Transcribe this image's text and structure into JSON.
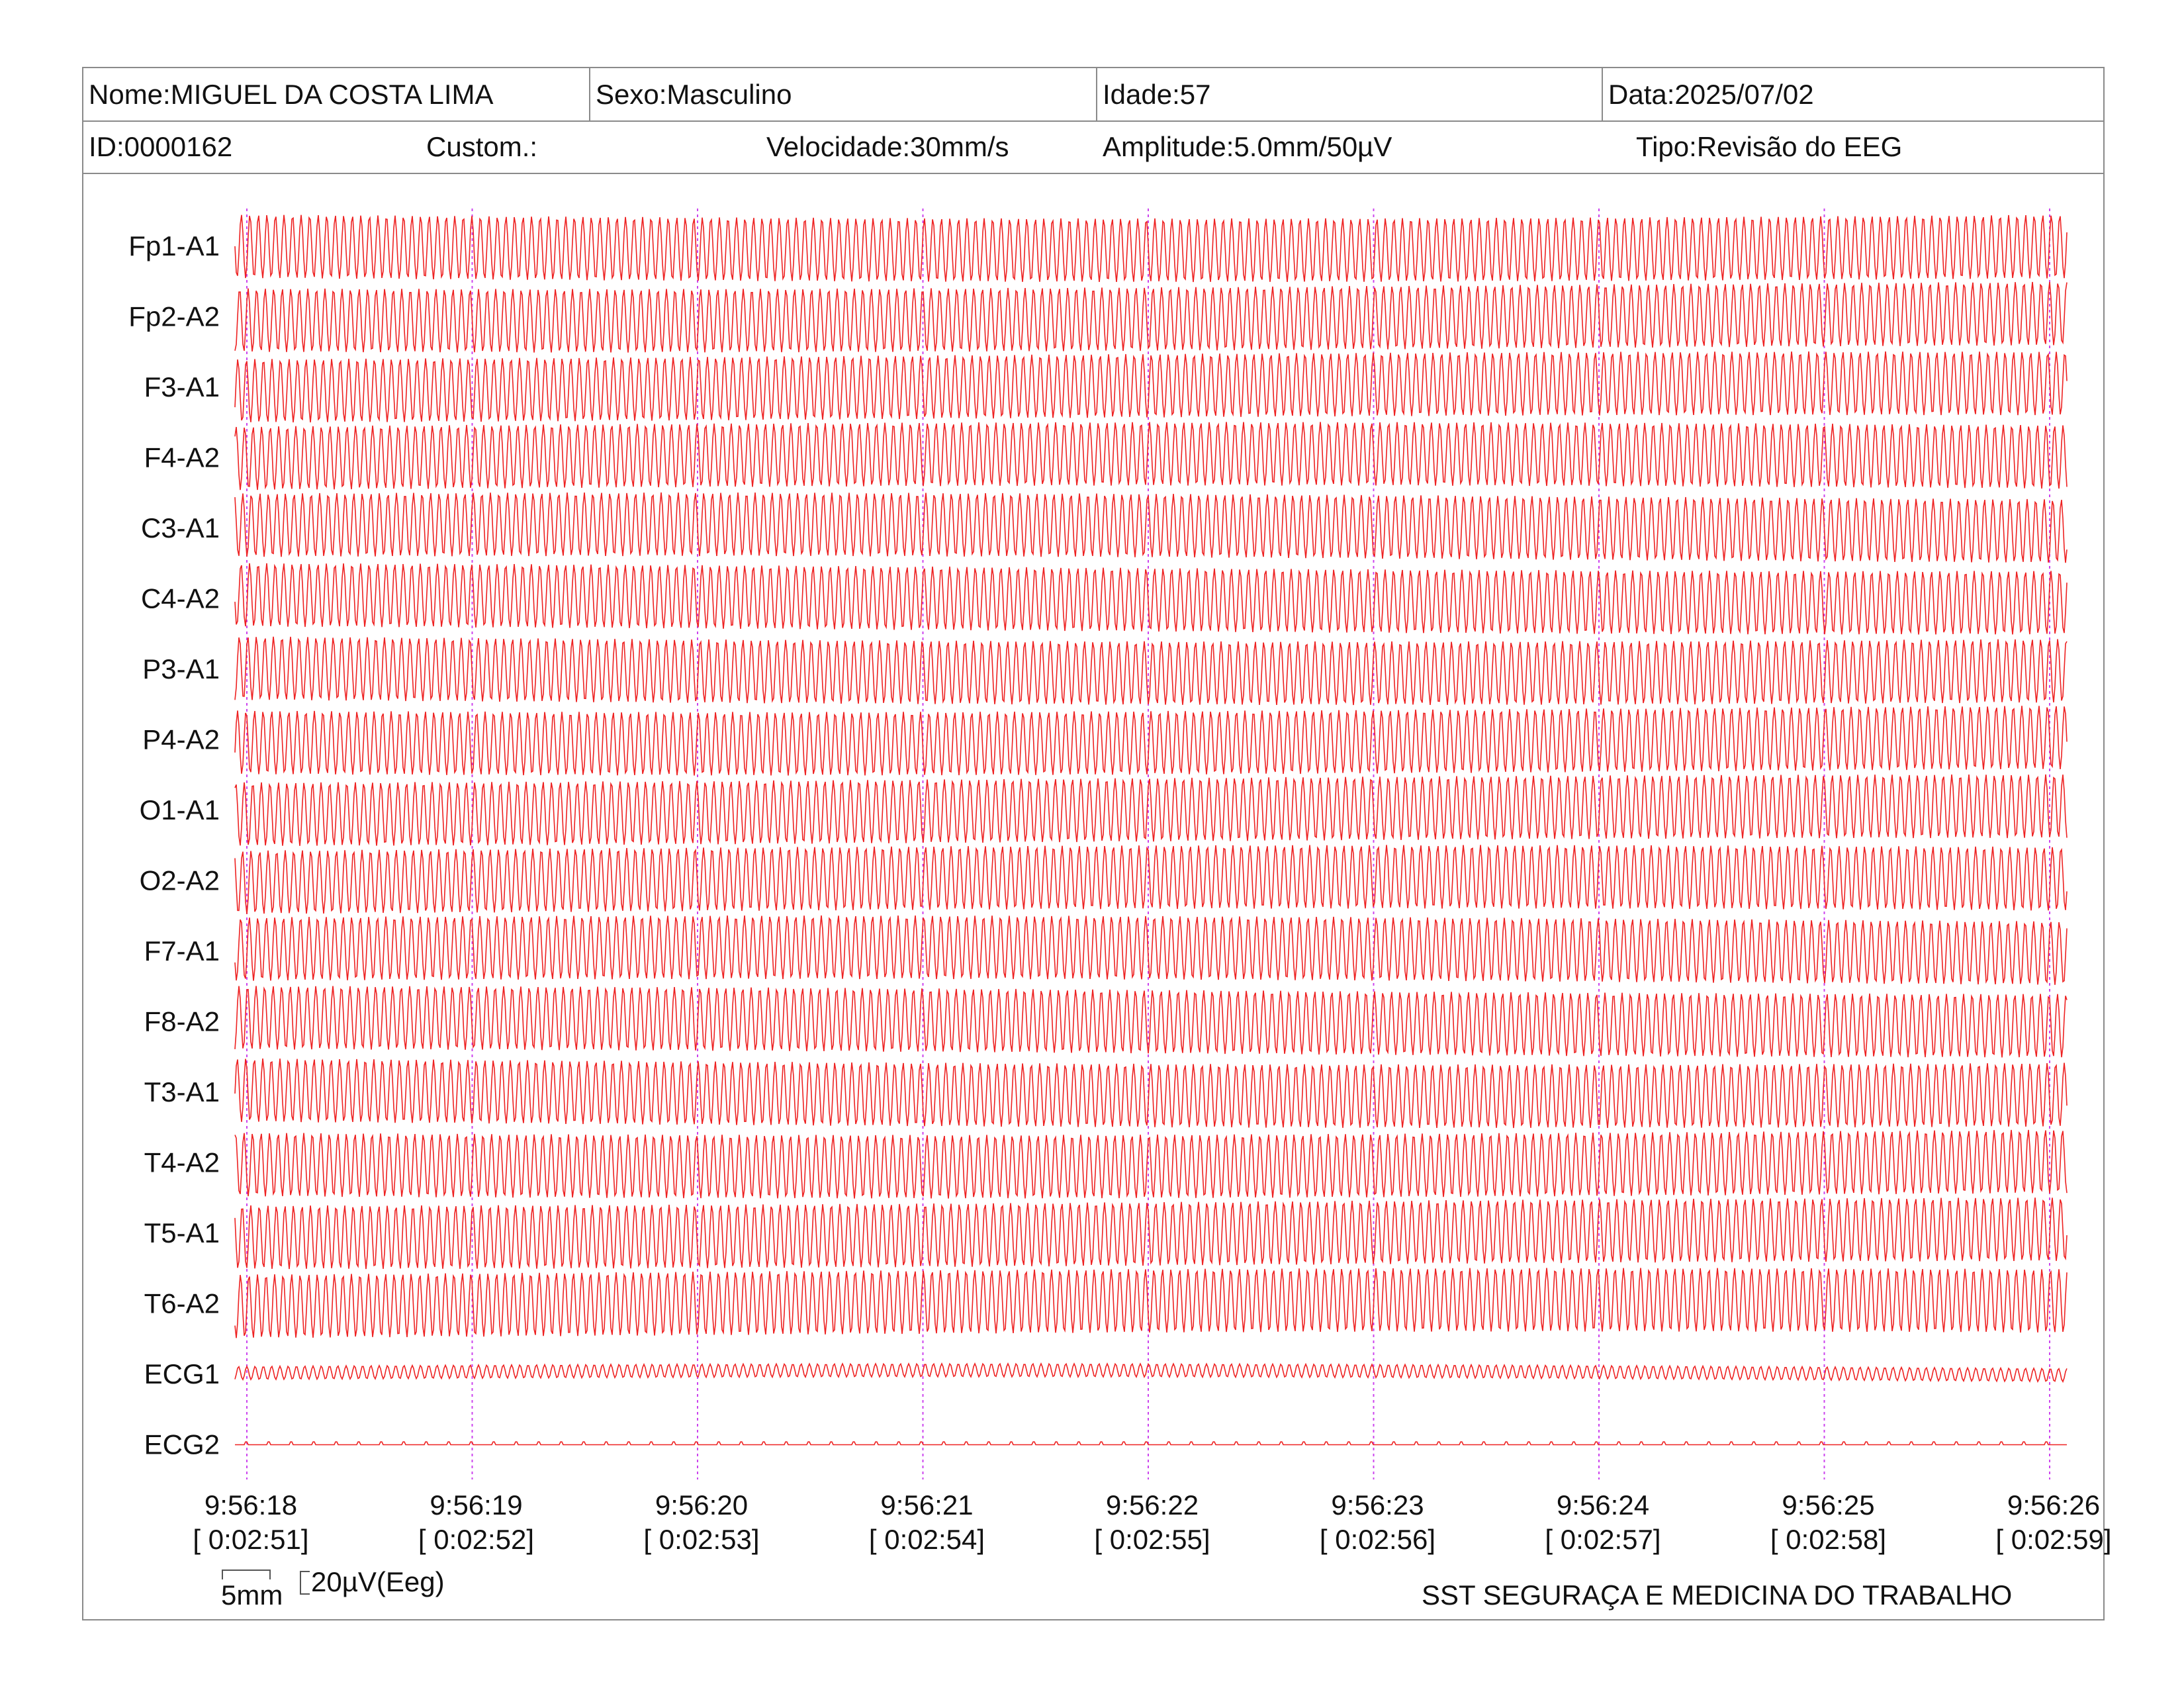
{
  "header": {
    "nome": "Nome:MIGUEL DA COSTA LIMA",
    "sexo": "Sexo:Masculino",
    "idade": "Idade:57",
    "data": "Data:2025/07/02",
    "id": "ID:0000162",
    "custom": "Custom.:",
    "velocidade": "Velocidade:30mm/s",
    "amplitude": "Amplitude:5.0mm/50µV",
    "tipo": "Tipo:Revisão do EEG"
  },
  "channels": [
    "Fp1-A1",
    "Fp2-A2",
    "F3-A1",
    "F4-A2",
    "C3-A1",
    "C4-A2",
    "P3-A1",
    "P4-A2",
    "O1-A1",
    "O2-A2",
    "F7-A1",
    "F8-A2",
    "T3-A1",
    "T4-A2",
    "T5-A1",
    "T6-A2",
    "ECG1",
    "ECG2"
  ],
  "time_marks": [
    {
      "clock": "9:56:18",
      "elapsed": "[ 0:02:51]"
    },
    {
      "clock": "9:56:19",
      "elapsed": "[ 0:02:52]"
    },
    {
      "clock": "9:56:20",
      "elapsed": "[ 0:02:53]"
    },
    {
      "clock": "9:56:21",
      "elapsed": "[ 0:02:54]"
    },
    {
      "clock": "9:56:22",
      "elapsed": "[ 0:02:55]"
    },
    {
      "clock": "9:56:23",
      "elapsed": "[ 0:02:56]"
    },
    {
      "clock": "9:56:24",
      "elapsed": "[ 0:02:57]"
    },
    {
      "clock": "9:56:25",
      "elapsed": "[ 0:02:58]"
    },
    {
      "clock": "9:56:26",
      "elapsed": "[ 0:02:59]"
    }
  ],
  "scale": {
    "time": "5mm",
    "amplitude": "20µV(Eeg)"
  },
  "footer": "SST SEGURAÇA E MEDICINA DO TRABALHO",
  "colors": {
    "trace": "#ee2222",
    "time_marker": "#cc44ee",
    "border": "#8a8a8a"
  }
}
